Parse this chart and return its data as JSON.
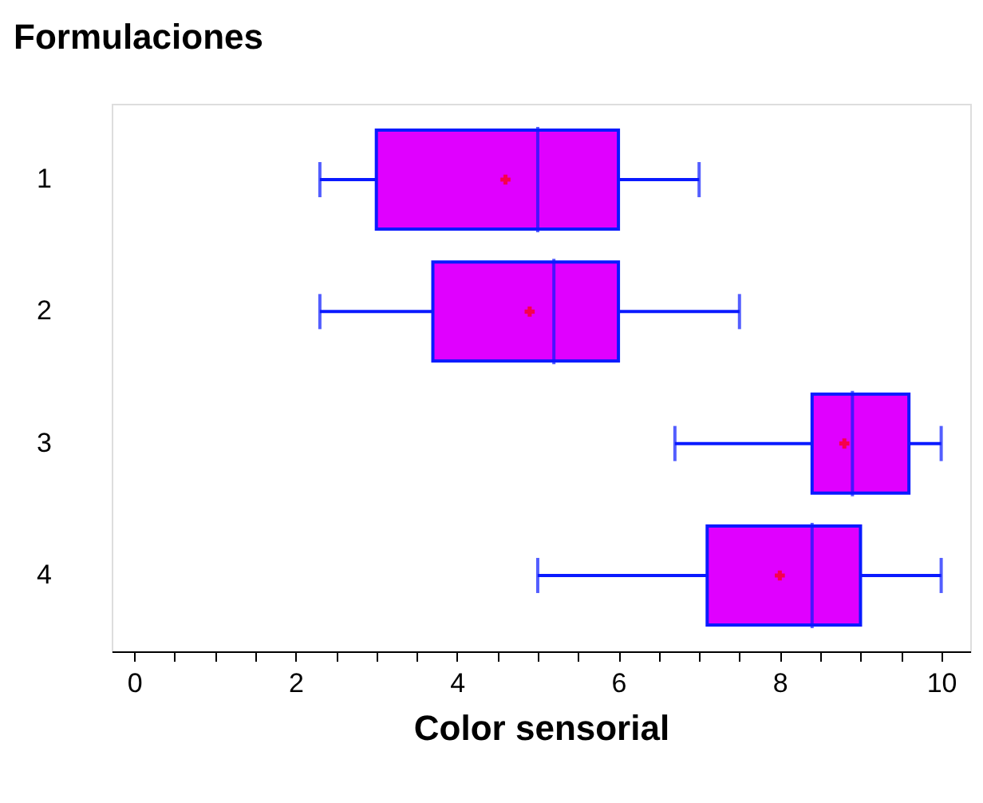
{
  "chart_data": {
    "type": "box",
    "orientation": "horizontal",
    "xlabel": "Color sensorial",
    "ylabel": "Formulaciones",
    "categories": [
      "1",
      "2",
      "3",
      "4"
    ],
    "boxes": [
      {
        "low": 2.3,
        "q1": 3.0,
        "median": 5.0,
        "q3": 6.0,
        "high": 7.0,
        "mean": 4.6
      },
      {
        "low": 2.3,
        "q1": 3.7,
        "median": 5.2,
        "q3": 6.0,
        "high": 7.5,
        "mean": 4.9
      },
      {
        "low": 6.7,
        "q1": 8.4,
        "median": 8.9,
        "q3": 9.6,
        "high": 10,
        "mean": 8.8
      },
      {
        "low": 5.0,
        "q1": 7.1,
        "median": 8.4,
        "q3": 9.0,
        "high": 10,
        "mean": 8.0
      }
    ],
    "color": "#e000ff",
    "xlim": [
      -0.28,
      10.36
    ],
    "xticks": [
      0,
      {
        "value": 0.5,
        "label": null
      },
      {
        "value": 1,
        "label": null
      },
      {
        "value": 1.5,
        "label": null
      },
      2,
      {
        "value": 2.5,
        "label": null
      },
      {
        "value": 3,
        "label": null
      },
      {
        "value": 3.5,
        "label": null
      },
      4,
      {
        "value": 4.5,
        "label": null
      },
      {
        "value": 5,
        "label": null
      },
      {
        "value": 5.5,
        "label": null
      },
      6,
      {
        "value": 6.5,
        "label": null
      },
      {
        "value": 7,
        "label": null
      },
      {
        "value": 7.5,
        "label": null
      },
      8,
      {
        "value": 8.5,
        "label": null
      },
      {
        "value": 9,
        "label": null
      },
      {
        "value": 9.5,
        "label": null
      },
      10
    ],
    "grid": false
  }
}
